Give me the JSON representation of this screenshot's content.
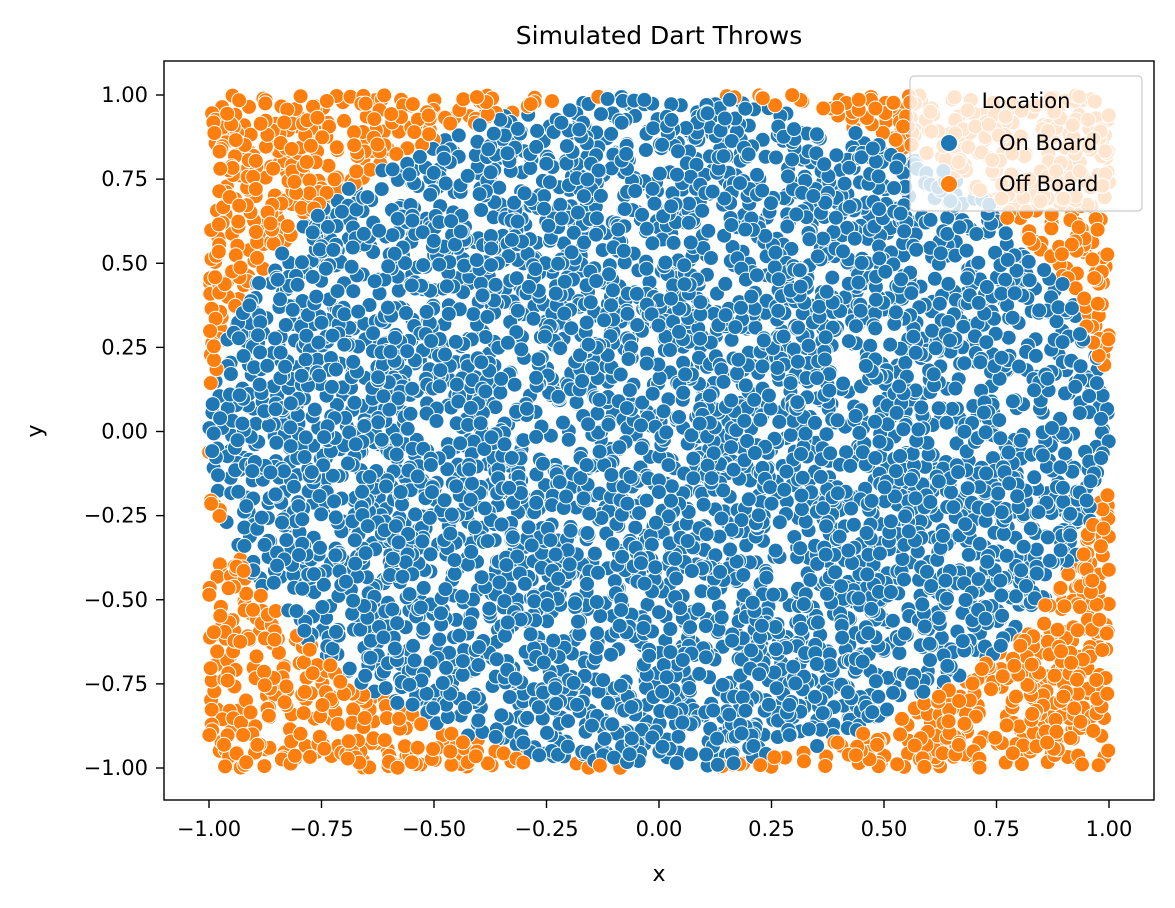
{
  "chart_data": {
    "type": "scatter",
    "title": "Simulated Dart Throws",
    "xlabel": "x",
    "ylabel": "y",
    "xlim": [
      -1.1,
      1.1
    ],
    "ylim": [
      -1.1,
      1.1
    ],
    "xticks": [
      -1.0,
      -0.75,
      -0.5,
      -0.25,
      0.0,
      0.25,
      0.5,
      0.75,
      1.0
    ],
    "yticks": [
      -1.0,
      -0.75,
      -0.5,
      -0.25,
      0.0,
      0.25,
      0.5,
      0.75,
      1.0
    ],
    "xtick_labels": [
      "−1.00",
      "−0.75",
      "−0.50",
      "−0.25",
      "0.00",
      "0.25",
      "0.50",
      "0.75",
      "1.00"
    ],
    "ytick_labels": [
      "−1.00",
      "−0.75",
      "−0.50",
      "−0.25",
      "0.00",
      "0.25",
      "0.50",
      "0.75",
      "1.00"
    ],
    "grid": false,
    "legend": {
      "title": "Location",
      "placement": "top-right",
      "entries": [
        "On Board",
        "Off Board"
      ]
    },
    "series": [
      {
        "name": "On Board",
        "color": "#1f77b4",
        "rule": "x^2 + y^2 <= 1",
        "x": [
          0.0,
          0.31,
          -0.42,
          0.55,
          -0.12,
          0.78,
          -0.66,
          0.21,
          -0.88,
          0.47
        ],
        "y": [
          0.0,
          0.52,
          -0.37,
          -0.61,
          0.83,
          0.12,
          0.44,
          -0.91,
          -0.05,
          0.29
        ]
      },
      {
        "name": "Off Board",
        "color": "#ff7f0e",
        "rule": "x^2 + y^2 > 1",
        "x": [
          -0.95,
          0.93,
          -0.9,
          0.88,
          -0.99,
          0.99,
          0.72,
          -0.8
        ],
        "y": [
          0.95,
          0.91,
          -0.93,
          -0.89,
          0.4,
          -0.45,
          0.97,
          -0.86
        ]
      }
    ],
    "sample_domain": {
      "x": [
        -1.0,
        1.0
      ],
      "y": [
        -1.0,
        1.0
      ]
    },
    "approx_point_count": 6000
  }
}
